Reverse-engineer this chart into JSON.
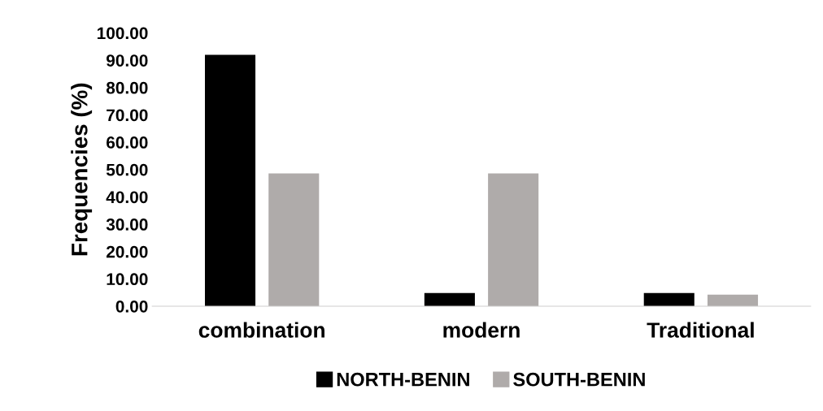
{
  "chart_data": {
    "type": "bar",
    "ylabel": "Frequencies (%)",
    "categories": [
      "combination",
      "modern",
      "Traditional"
    ],
    "series": [
      {
        "name": "NORTH-BENIN",
        "color": "#000000",
        "values": [
          92.0,
          4.8,
          4.8
        ]
      },
      {
        "name": "SOUTH-BENIN",
        "color": "#afabaa",
        "values": [
          48.6,
          48.6,
          4.2
        ]
      }
    ],
    "ylim": [
      0,
      100
    ],
    "yticks": [
      {
        "value": 0,
        "label": "0.00"
      },
      {
        "value": 10,
        "label": "10.00"
      },
      {
        "value": 20,
        "label": "20.00"
      },
      {
        "value": 30,
        "label": "30.00"
      },
      {
        "value": 40,
        "label": "40.00"
      },
      {
        "value": 50,
        "label": "50.00"
      },
      {
        "value": 60,
        "label": "60.00"
      },
      {
        "value": 70,
        "label": "70.00"
      },
      {
        "value": 80,
        "label": "80.00"
      },
      {
        "value": 90,
        "label": "90.00"
      },
      {
        "value": 100,
        "label": "100.00"
      }
    ],
    "grid": false,
    "legend": "bottom"
  }
}
